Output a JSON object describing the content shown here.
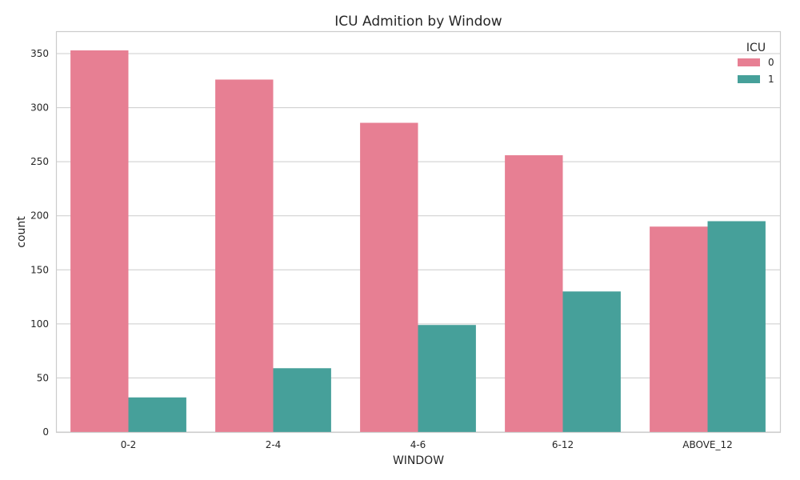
{
  "chart_data": {
    "type": "bar",
    "title": "ICU Admition by Window",
    "xlabel": "WINDOW",
    "ylabel": "count",
    "categories": [
      "0-2",
      "2-4",
      "4-6",
      "6-12",
      "ABOVE_12"
    ],
    "series": [
      {
        "name": "0",
        "color": "#e77f93",
        "values": [
          353,
          326,
          286,
          256,
          190
        ]
      },
      {
        "name": "1",
        "color": "#46a09a",
        "values": [
          32,
          59,
          99,
          130,
          195
        ]
      }
    ],
    "ylim": [
      0,
      370
    ],
    "yticks": [
      0,
      50,
      100,
      150,
      200,
      250,
      300,
      350
    ],
    "grid": true,
    "legend": {
      "title": "ICU",
      "position": "top-right"
    }
  }
}
